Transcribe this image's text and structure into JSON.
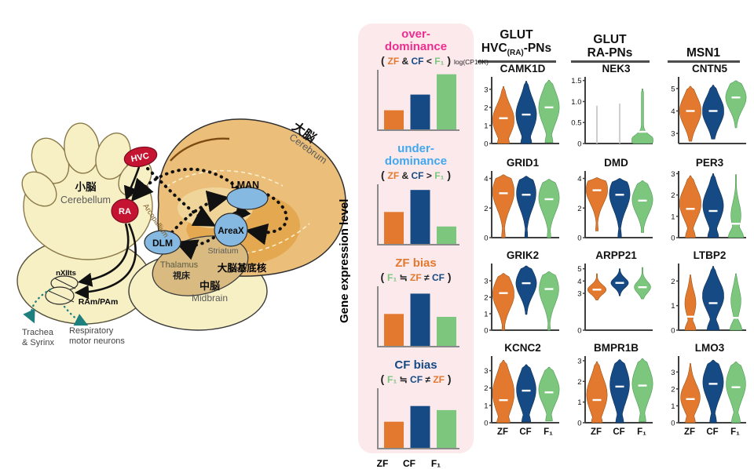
{
  "colors": {
    "zf": "#E2792E",
    "cf": "#164A84",
    "f1": "#7CC67E",
    "dark": "#222222",
    "over_title": "#EC2E8E",
    "under_title": "#41A8F0",
    "panel_bg": "#FBE9EC",
    "nek3_sparse_line": "#C9C9C9",
    "axis": "#3F3F3F"
  },
  "brain": {
    "region_labels": {
      "cerebrum_jp": "大脳",
      "cerebrum_en": "Cerebrum",
      "cerebellum_jp": "小脳",
      "cerebellum_en": "Cerebellum",
      "midbrain_jp": "中脳",
      "midbrain_en": "Midbrain",
      "thalamus_en": "Thalamus",
      "thalamus_jp": "視床",
      "striatum": "Striatum",
      "basal_ganglia_jp": "大脳基底核",
      "arcopallium": "Arcopallium"
    },
    "nuclei": {
      "hvc": "HVC",
      "ra": "RA",
      "dlm": "DLM",
      "lman": "LMAN",
      "areax": "AreaX",
      "nxiits": "nXIIts",
      "ram_pam": "RAm/PAm"
    },
    "peripheral": {
      "trachea_line1": "Trachea",
      "trachea_line2": "& Syrinx",
      "resp_line1": "Respiratory",
      "resp_line2": "motor neurons"
    }
  },
  "legend_panel": {
    "ylabel": "Gene expression level",
    "x_labels": [
      "ZF",
      "CF",
      "F₁"
    ],
    "sections": [
      {
        "id": "over-dominance",
        "title_lines": [
          "over-",
          "dominance"
        ],
        "title_color": "#EC2E8E",
        "formula": [
          {
            "t": "( ",
            "c": "dark"
          },
          {
            "t": "ZF",
            "c": "zf"
          },
          {
            "t": " & ",
            "c": "dark"
          },
          {
            "t": "CF",
            "c": "cf"
          },
          {
            "t": " < ",
            "c": "dark"
          },
          {
            "t": "F₁",
            "c": "f1"
          },
          {
            "t": " )",
            "c": "dark"
          }
        ],
        "bars": [
          0.33,
          0.6,
          0.95
        ]
      },
      {
        "id": "under-dominance",
        "title_lines": [
          "under-",
          "dominance"
        ],
        "title_color": "#41A8F0",
        "formula": [
          {
            "t": "( ",
            "c": "dark"
          },
          {
            "t": "ZF",
            "c": "zf"
          },
          {
            "t": " & ",
            "c": "dark"
          },
          {
            "t": "CF",
            "c": "cf"
          },
          {
            "t": " > ",
            "c": "dark"
          },
          {
            "t": "F₁",
            "c": "f1"
          },
          {
            "t": " )",
            "c": "dark"
          }
        ],
        "bars": [
          0.55,
          0.93,
          0.3
        ]
      },
      {
        "id": "zf-bias",
        "title_lines": [
          "ZF bias"
        ],
        "title_color": "#E2792E",
        "formula": [
          {
            "t": "( ",
            "c": "dark"
          },
          {
            "t": "F₁",
            "c": "f1"
          },
          {
            "t": " ≒ ",
            "c": "dark"
          },
          {
            "t": "ZF",
            "c": "zf"
          },
          {
            "t": " ≠ ",
            "c": "dark"
          },
          {
            "t": "CF",
            "c": "cf"
          },
          {
            "t": " )",
            "c": "dark"
          }
        ],
        "bars": [
          0.55,
          0.9,
          0.5
        ]
      },
      {
        "id": "cf-bias",
        "title_lines": [
          "CF bias"
        ],
        "title_color": "#164A84",
        "formula": [
          {
            "t": "( ",
            "c": "dark"
          },
          {
            "t": "F₁",
            "c": "f1"
          },
          {
            "t": " ≒ ",
            "c": "dark"
          },
          {
            "t": "CF",
            "c": "cf"
          },
          {
            "t": " ≠ ",
            "c": "dark"
          },
          {
            "t": "ZF",
            "c": "zf"
          },
          {
            "t": " )",
            "c": "dark"
          }
        ],
        "bars": [
          0.45,
          0.72,
          0.65
        ],
        "show_x_labels": true
      }
    ]
  },
  "violin_grid": {
    "ylabel": "Gene expression level",
    "unit_label": "log(CP10K)",
    "column_headers": [
      {
        "line1": "GLUT",
        "pre": "HVC",
        "sub": "(RA)",
        "post": "-PNs"
      },
      {
        "line1": "GLUT",
        "pre": "RA-PNs",
        "sub": "",
        "post": ""
      },
      {
        "line1": "",
        "pre": "MSN1",
        "sub": "",
        "post": ""
      }
    ],
    "x_labels": [
      "ZF",
      "CF",
      "F₁"
    ]
  },
  "chart_data": {
    "type": "violin",
    "groups": [
      "ZF",
      "CF",
      "F1"
    ],
    "group_colors": {
      "ZF": "#E2792E",
      "CF": "#164A84",
      "F1": "#7CC67E"
    },
    "ylabel": "Gene expression level log(CP10K)",
    "cell_types": [
      "GLUT HVC(RA)-PNs",
      "GLUT RA-PNs",
      "MSN1"
    ],
    "panels": [
      {
        "gene": "CAMK1D",
        "col": 0,
        "ylim": [
          0,
          3.6
        ],
        "yticks": [
          0,
          1,
          2,
          3
        ],
        "ytick_labels": [
          "0",
          "1",
          "2",
          "3"
        ],
        "violins": [
          {
            "g": "ZF",
            "min": 0,
            "max": 3.15,
            "peak": 1.3,
            "pw": 1,
            "bw": 0.55,
            "median": 1.4
          },
          {
            "g": "CF",
            "min": 0,
            "max": 3.45,
            "peak": 1.6,
            "pw": 0.95,
            "bw": 0.5,
            "median": 1.6
          },
          {
            "g": "F1",
            "min": 0.05,
            "max": 3.5,
            "peak": 2.0,
            "pw": 0.95,
            "bw": 0.35,
            "median": 2.0
          }
        ]
      },
      {
        "gene": "NEK3",
        "col": 1,
        "ylim": [
          0,
          1.55
        ],
        "yticks": [
          0,
          0.5,
          1.0,
          1.5
        ],
        "ytick_labels": [
          "0",
          "0.5",
          "1.0",
          "1.5"
        ],
        "violins": [
          {
            "g": "ZF",
            "style": "line",
            "min": 0,
            "max": 0.9,
            "median": null
          },
          {
            "g": "CF",
            "style": "line",
            "min": 0,
            "max": 0.95,
            "median": null
          },
          {
            "g": "F1",
            "min": 0,
            "max": 1.3,
            "peak": 0.08,
            "pw": 1,
            "sw": 0.09,
            "stem": 0.1,
            "bw": 0,
            "median": 0.28
          }
        ]
      },
      {
        "gene": "CNTN5",
        "col": 2,
        "ylim": [
          2.55,
          5.45
        ],
        "yticks": [
          3,
          4,
          5
        ],
        "ytick_labels": [
          "3",
          "4",
          "5"
        ],
        "violins": [
          {
            "g": "ZF",
            "min": 2.65,
            "max": 5.1,
            "peak": 4.0,
            "pw": 1,
            "bw": 0,
            "median": 4.0
          },
          {
            "g": "CF",
            "min": 2.75,
            "max": 5.15,
            "peak": 4.0,
            "pw": 1,
            "bw": 0,
            "median": 4.0
          },
          {
            "g": "F1",
            "min": 3.25,
            "max": 5.35,
            "peak": 4.6,
            "pw": 0.95,
            "bw": 0,
            "median": 4.6
          }
        ]
      },
      {
        "gene": "GRID1",
        "col": 0,
        "ylim": [
          0,
          4.4
        ],
        "yticks": [
          0,
          2,
          4
        ],
        "ytick_labels": [
          "0",
          "2",
          "4"
        ],
        "violins": [
          {
            "g": "ZF",
            "min": 0,
            "max": 4.25,
            "peak": 3.1,
            "pw": 1,
            "bw": 0.15,
            "median": 3.0
          },
          {
            "g": "CF",
            "min": 0,
            "max": 4.15,
            "peak": 3.0,
            "pw": 0.9,
            "bw": 0.12,
            "median": 2.9
          },
          {
            "g": "F1",
            "min": 0,
            "max": 3.95,
            "peak": 2.7,
            "pw": 0.95,
            "bw": 0.15,
            "median": 2.6
          }
        ]
      },
      {
        "gene": "DMD",
        "col": 1,
        "ylim": [
          0,
          4.4
        ],
        "yticks": [
          0,
          2,
          4
        ],
        "ytick_labels": [
          "0",
          "2",
          "4"
        ],
        "violins": [
          {
            "g": "ZF",
            "min": 0.45,
            "max": 4.05,
            "peak": 3.25,
            "pw": 1,
            "bw": 0.1,
            "median": 3.2
          },
          {
            "g": "CF",
            "min": 0,
            "max": 4.0,
            "peak": 2.95,
            "pw": 0.95,
            "bw": 0.15,
            "median": 2.9
          },
          {
            "g": "F1",
            "min": 0.35,
            "max": 3.85,
            "peak": 2.55,
            "pw": 0.95,
            "bw": 0.1,
            "median": 2.5
          }
        ]
      },
      {
        "gene": "PER3",
        "col": 2,
        "ylim": [
          0,
          3.05
        ],
        "yticks": [
          0,
          1,
          2,
          3
        ],
        "ytick_labels": [
          "0",
          "1",
          "2",
          "3"
        ],
        "violins": [
          {
            "g": "ZF",
            "min": 0,
            "max": 2.9,
            "peak": 1.6,
            "pw": 1,
            "sw": 0.24,
            "bw": 0.45,
            "median": 1.35
          },
          {
            "g": "CF",
            "min": 0,
            "max": 3.0,
            "peak": 1.5,
            "pw": 0.95,
            "sw": 0.24,
            "bw": 0.5,
            "median": 1.25
          },
          {
            "g": "F1",
            "min": 0,
            "max": 2.95,
            "peak": 1.05,
            "pw": 0.45,
            "sw": 0.2,
            "bw": 0.7,
            "median": 0.65
          }
        ]
      },
      {
        "gene": "GRIK2",
        "col": 0,
        "ylim": [
          0,
          3.95
        ],
        "yticks": [
          0,
          1,
          2,
          3
        ],
        "ytick_labels": [
          "0",
          "1",
          "2",
          "3"
        ],
        "violins": [
          {
            "g": "ZF",
            "min": 0,
            "max": 3.45,
            "peak": 2.2,
            "pw": 1,
            "bw": 0.12,
            "median": 2.25
          },
          {
            "g": "CF",
            "min": 0.95,
            "max": 3.9,
            "peak": 2.85,
            "pw": 0.95,
            "bw": 0,
            "median": 2.85
          },
          {
            "g": "F1",
            "min": 0,
            "max": 3.55,
            "peak": 2.5,
            "pw": 0.9,
            "bw": 0.1,
            "median": 2.5
          }
        ]
      },
      {
        "gene": "ARPP21",
        "col": 1,
        "ylim": [
          0,
          5.3
        ],
        "yticks": [
          0,
          3,
          4,
          5
        ],
        "ytick_labels": [
          "0",
          "3",
          "4",
          "5"
        ],
        "violins": [
          {
            "g": "ZF",
            "min": 2.45,
            "max": 4.6,
            "peak": 3.3,
            "pw": 0.85,
            "sw": 0.18,
            "bw": 0,
            "median": 3.3
          },
          {
            "g": "CF",
            "min": 2.8,
            "max": 5.0,
            "peak": 3.85,
            "pw": 0.8,
            "sw": 0.18,
            "bw": 0,
            "median": 3.85
          },
          {
            "g": "F1",
            "min": 2.55,
            "max": 5.1,
            "peak": 3.5,
            "pw": 0.75,
            "sw": 0.18,
            "bw": 0,
            "median": 3.5
          }
        ]
      },
      {
        "gene": "LTBP2",
        "col": 2,
        "ylim": [
          0,
          2.65
        ],
        "yticks": [
          0,
          1,
          2
        ],
        "ytick_labels": [
          "0",
          "1",
          "2"
        ],
        "violins": [
          {
            "g": "ZF",
            "min": 0,
            "max": 2.25,
            "peak": 1.1,
            "pw": 0.5,
            "sw": 0.22,
            "bw": 0.5,
            "median": 0.55
          },
          {
            "g": "CF",
            "min": 0,
            "max": 2.6,
            "peak": 1.4,
            "pw": 1,
            "sw": 0.22,
            "bw": 0.55,
            "median": 1.1
          },
          {
            "g": "F1",
            "min": 0,
            "max": 2.3,
            "peak": 1.2,
            "pw": 0.45,
            "sw": 0.22,
            "bw": 0.55,
            "median": 0.5
          }
        ]
      },
      {
        "gene": "KCNC2",
        "col": 0,
        "ylim": [
          0,
          3.75
        ],
        "yticks": [
          0,
          1,
          2,
          3
        ],
        "ytick_labels": [
          "0",
          "1",
          "2",
          "3"
        ],
        "violins": [
          {
            "g": "ZF",
            "min": 0,
            "max": 3.6,
            "peak": 1.7,
            "pw": 1,
            "sw": 0.3,
            "bw": 0.6,
            "median": 1.3
          },
          {
            "g": "CF",
            "min": 0.05,
            "max": 3.35,
            "peak": 1.9,
            "pw": 0.9,
            "sw": 0.28,
            "bw": 0.4,
            "median": 1.85
          },
          {
            "g": "F1",
            "min": 0.1,
            "max": 3.2,
            "peak": 1.9,
            "pw": 0.95,
            "sw": 0.26,
            "bw": 0.3,
            "median": 1.75
          }
        ]
      },
      {
        "gene": "BMPR1B",
        "col": 1,
        "ylim": [
          0,
          3.15
        ],
        "yticks": [
          0,
          1,
          2,
          3
        ],
        "ytick_labels": [
          "0",
          "1",
          "2",
          "3"
        ],
        "violins": [
          {
            "g": "ZF",
            "min": 0,
            "max": 2.95,
            "peak": 1.35,
            "pw": 0.95,
            "sw": 0.28,
            "bw": 0.5,
            "median": 1.1
          },
          {
            "g": "CF",
            "min": 0,
            "max": 3.05,
            "peak": 1.85,
            "pw": 0.9,
            "sw": 0.28,
            "bw": 0.35,
            "median": 1.75
          },
          {
            "g": "F1",
            "min": 0.05,
            "max": 3.1,
            "peak": 1.9,
            "pw": 0.95,
            "sw": 0.26,
            "bw": 0.3,
            "median": 1.8
          }
        ]
      },
      {
        "gene": "LMO3",
        "col": 2,
        "ylim": [
          0,
          3.85
        ],
        "yticks": [
          0,
          1,
          2,
          3
        ],
        "ytick_labels": [
          "0",
          "1",
          "2",
          "3"
        ],
        "violins": [
          {
            "g": "ZF",
            "min": 0,
            "max": 3.5,
            "peak": 1.5,
            "pw": 0.9,
            "sw": 0.22,
            "bw": 0.45,
            "median": 1.4
          },
          {
            "g": "CF",
            "min": 0,
            "max": 3.7,
            "peak": 2.4,
            "pw": 0.95,
            "sw": 0.26,
            "bw": 0.3,
            "median": 2.3
          },
          {
            "g": "F1",
            "min": 0,
            "max": 3.6,
            "peak": 2.3,
            "pw": 0.9,
            "sw": 0.26,
            "bw": 0.4,
            "median": 2.1
          }
        ]
      }
    ]
  }
}
